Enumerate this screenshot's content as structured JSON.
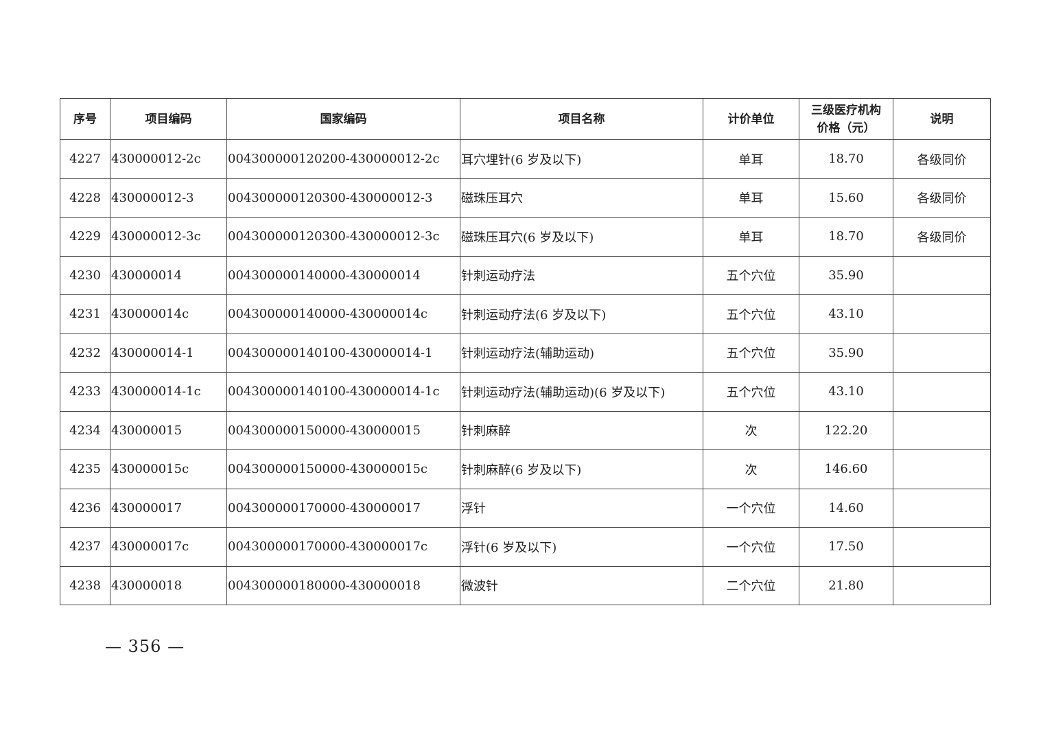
{
  "table": {
    "headers": [
      "序号",
      "项目编码",
      "国家编码",
      "项目名称",
      "计价单位",
      "三级医疗机构\n价格（元）",
      "说明"
    ],
    "header_price_line1": "三级医疗机构",
    "header_price_line2": "价格（元）",
    "rows": [
      [
        "4227",
        "430000012-2c",
        "004300000120200-430000012-2c",
        "耳穴埋针(6 岁及以下)",
        "单耳",
        "18.70",
        "各级同价"
      ],
      [
        "4228",
        "430000012-3",
        "004300000120300-430000012-3",
        "磁珠压耳穴",
        "单耳",
        "15.60",
        "各级同价"
      ],
      [
        "4229",
        "430000012-3c",
        "004300000120300-430000012-3c",
        "磁珠压耳穴(6 岁及以下)",
        "单耳",
        "18.70",
        "各级同价"
      ],
      [
        "4230",
        "430000014",
        "004300000140000-430000014",
        "针刺运动疗法",
        "五个穴位",
        "35.90",
        ""
      ],
      [
        "4231",
        "430000014c",
        "004300000140000-430000014c",
        "针刺运动疗法(6 岁及以下)",
        "五个穴位",
        "43.10",
        ""
      ],
      [
        "4232",
        "430000014-1",
        "004300000140100-430000014-1",
        "针刺运动疗法(辅助运动)",
        "五个穴位",
        "35.90",
        ""
      ],
      [
        "4233",
        "430000014-1c",
        "004300000140100-430000014-1c",
        "针刺运动疗法(辅助运动)(6 岁及以下)",
        "五个穴位",
        "43.10",
        ""
      ],
      [
        "4234",
        "430000015",
        "004300000150000-430000015",
        "针刺麻醉",
        "次",
        "122.20",
        ""
      ],
      [
        "4235",
        "430000015c",
        "004300000150000-430000015c",
        "针刺麻醉(6 岁及以下)",
        "次",
        "146.60",
        ""
      ],
      [
        "4236",
        "430000017",
        "004300000170000-430000017",
        "浮针",
        "一个穴位",
        "14.60",
        ""
      ],
      [
        "4237",
        "430000017c",
        "004300000170000-430000017c",
        "浮针(6 岁及以下)",
        "一个穴位",
        "17.50",
        ""
      ],
      [
        "4238",
        "430000018",
        "004300000180000-430000018",
        "微波针",
        "二个穴位",
        "21.80",
        ""
      ]
    ]
  },
  "page_number": "— 356 —"
}
